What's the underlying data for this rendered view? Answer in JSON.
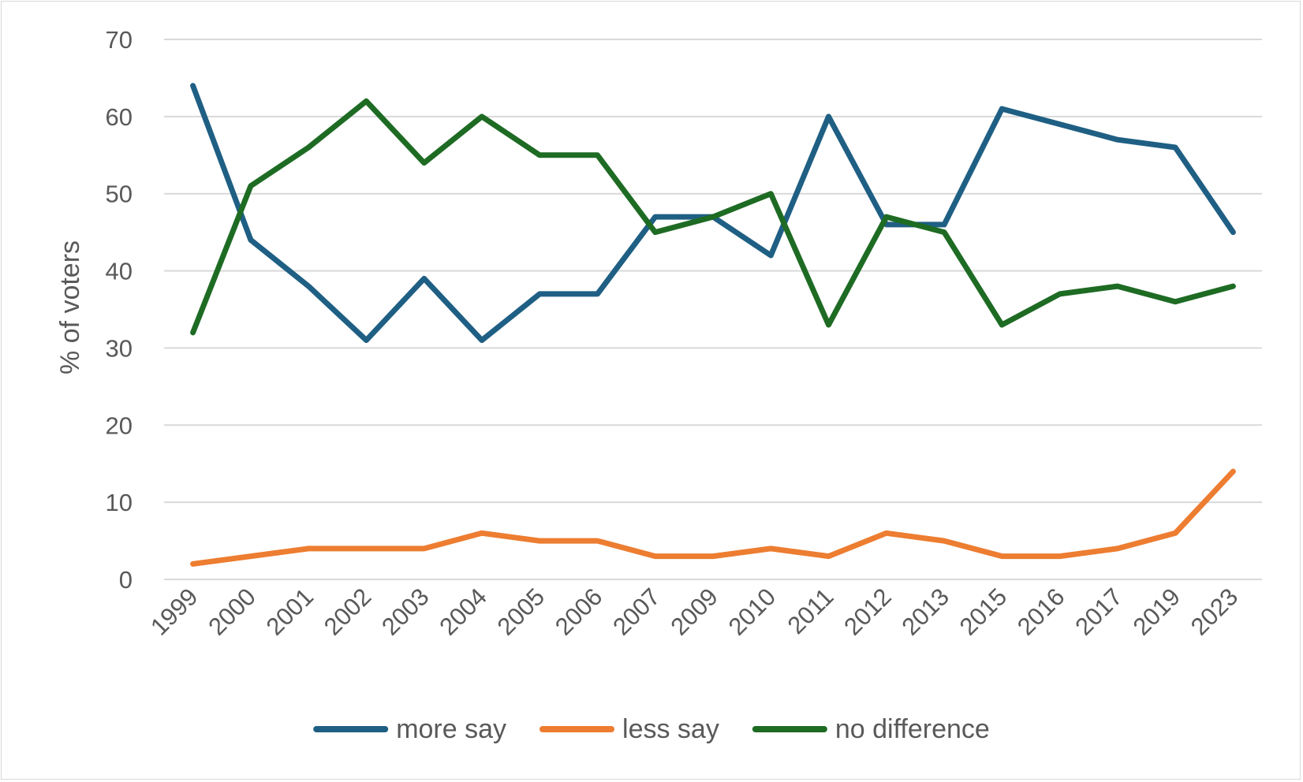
{
  "chart_data": {
    "type": "line",
    "title": "",
    "xlabel": "",
    "ylabel": "% of voters",
    "ylim": [
      0,
      70
    ],
    "yticks": [
      0,
      10,
      20,
      30,
      40,
      50,
      60,
      70
    ],
    "grid": true,
    "legend_position": "bottom",
    "categories": [
      "1999",
      "2000",
      "2001",
      "2002",
      "2003",
      "2004",
      "2005",
      "2006",
      "2007",
      "2009",
      "2010",
      "2011",
      "2012",
      "2013",
      "2015",
      "2016",
      "2017",
      "2019",
      "2023"
    ],
    "series": [
      {
        "name": "more say",
        "color": "#1f5f84",
        "values": [
          64,
          44,
          38,
          31,
          39,
          31,
          37,
          37,
          47,
          47,
          42,
          60,
          46,
          46,
          61,
          59,
          57,
          56,
          45
        ]
      },
      {
        "name": "less say",
        "color": "#ed7d31",
        "values": [
          2,
          3,
          4,
          4,
          4,
          6,
          5,
          5,
          3,
          3,
          4,
          3,
          6,
          5,
          3,
          3,
          4,
          6,
          14
        ]
      },
      {
        "name": "no difference",
        "color": "#1e6b24",
        "values": [
          32,
          51,
          56,
          62,
          54,
          60,
          55,
          55,
          45,
          47,
          50,
          33,
          47,
          45,
          33,
          37,
          38,
          36,
          38
        ]
      }
    ]
  }
}
